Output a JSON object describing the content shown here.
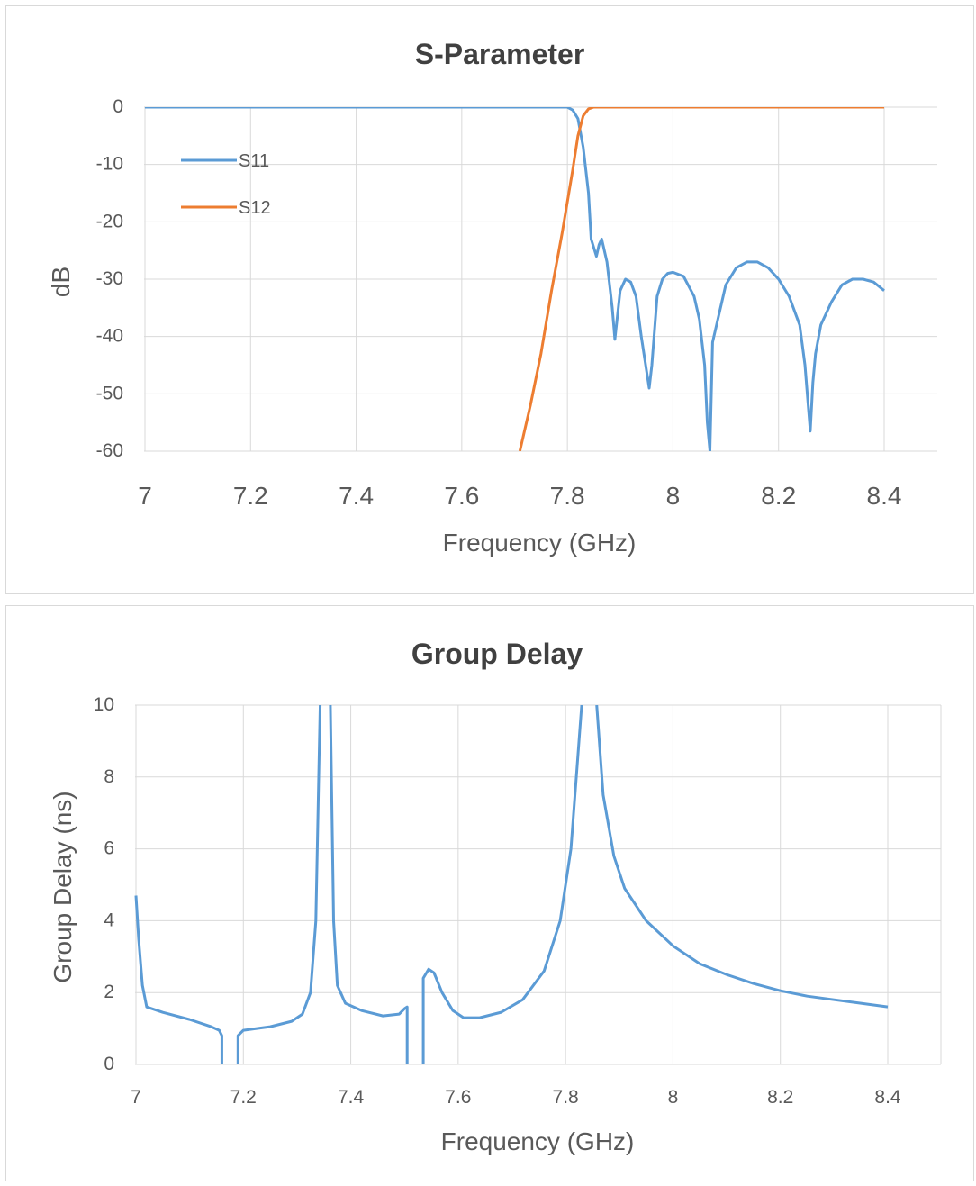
{
  "colors": {
    "s11": "#5b9bd5",
    "s12": "#ed7d31",
    "grid": "#d9d9d9",
    "text": "#595959",
    "title": "#404040"
  },
  "chart_data": [
    {
      "type": "line",
      "title": "S-Parameter",
      "xlabel": "Frequency (GHz)",
      "ylabel": "dB",
      "xlim": [
        7,
        8.4
      ],
      "ylim": [
        -60,
        0
      ],
      "grid": true,
      "legend_position": "top-left",
      "x_ticks": [
        "7",
        "7.2",
        "7.4",
        "7.6",
        "7.8",
        "8",
        "8.2",
        "8.4"
      ],
      "y_ticks": [
        "0",
        "-10",
        "-20",
        "-30",
        "-40",
        "-50",
        "-60"
      ],
      "series": [
        {
          "name": "S11",
          "color": "#5b9bd5",
          "points": [
            [
              7,
              0
            ],
            [
              7.5,
              0
            ],
            [
              7.8,
              0
            ],
            [
              7.81,
              -0.5
            ],
            [
              7.82,
              -2
            ],
            [
              7.83,
              -7
            ],
            [
              7.84,
              -15
            ],
            [
              7.845,
              -23
            ],
            [
              7.855,
              -26
            ],
            [
              7.86,
              -24
            ],
            [
              7.865,
              -23
            ],
            [
              7.875,
              -27
            ],
            [
              7.885,
              -35
            ],
            [
              7.89,
              -40.5
            ],
            [
              7.9,
              -32
            ],
            [
              7.91,
              -30
            ],
            [
              7.92,
              -30.5
            ],
            [
              7.93,
              -33
            ],
            [
              7.94,
              -40
            ],
            [
              7.955,
              -49
            ],
            [
              7.96,
              -45
            ],
            [
              7.97,
              -33
            ],
            [
              7.98,
              -30
            ],
            [
              7.99,
              -29
            ],
            [
              8.0,
              -28.8
            ],
            [
              8.02,
              -29.5
            ],
            [
              8.04,
              -33
            ],
            [
              8.05,
              -37
            ],
            [
              8.06,
              -45
            ],
            [
              8.065,
              -55
            ],
            [
              8.07,
              -60
            ],
            [
              8.075,
              -41
            ],
            [
              8.085,
              -37
            ],
            [
              8.1,
              -31
            ],
            [
              8.12,
              -28
            ],
            [
              8.14,
              -27
            ],
            [
              8.16,
              -27
            ],
            [
              8.18,
              -28
            ],
            [
              8.2,
              -30
            ],
            [
              8.22,
              -33
            ],
            [
              8.24,
              -38
            ],
            [
              8.25,
              -45
            ],
            [
              8.26,
              -56.5
            ],
            [
              8.265,
              -48
            ],
            [
              8.27,
              -43
            ],
            [
              8.28,
              -38
            ],
            [
              8.3,
              -34
            ],
            [
              8.32,
              -31
            ],
            [
              8.34,
              -30
            ],
            [
              8.36,
              -30
            ],
            [
              8.38,
              -30.5
            ],
            [
              8.4,
              -32
            ]
          ]
        },
        {
          "name": "S12",
          "color": "#ed7d31",
          "points": [
            [
              7.71,
              -60
            ],
            [
              7.73,
              -52
            ],
            [
              7.75,
              -43
            ],
            [
              7.77,
              -32
            ],
            [
              7.79,
              -22
            ],
            [
              7.81,
              -11
            ],
            [
              7.82,
              -5
            ],
            [
              7.83,
              -1.5
            ],
            [
              7.84,
              -0.3
            ],
            [
              7.85,
              0
            ],
            [
              8.0,
              0
            ],
            [
              8.4,
              0
            ]
          ]
        }
      ]
    },
    {
      "type": "line",
      "title": "Group Delay",
      "xlabel": "Frequency (GHz)",
      "ylabel": "Group Delay (ns)",
      "xlim": [
        7,
        8.4
      ],
      "ylim": [
        0,
        10
      ],
      "grid": true,
      "x_ticks": [
        "7",
        "7.2",
        "7.4",
        "7.6",
        "7.8",
        "8",
        "8.2",
        "8.4"
      ],
      "y_ticks": [
        "10",
        "8",
        "6",
        "4",
        "2",
        "0"
      ],
      "series": [
        {
          "color": "#5b9bd5",
          "segments": [
            [
              [
                7.0,
                4.7
              ],
              [
                7.005,
                3.5
              ],
              [
                7.012,
                2.2
              ],
              [
                7.02,
                1.6
              ],
              [
                7.05,
                1.45
              ],
              [
                7.1,
                1.25
              ],
              [
                7.14,
                1.05
              ],
              [
                7.155,
                0.95
              ],
              [
                7.16,
                0.8
              ],
              [
                7.16,
                0
              ]
            ],
            [
              [
                7.19,
                0
              ],
              [
                7.19,
                0.8
              ],
              [
                7.2,
                0.95
              ],
              [
                7.25,
                1.05
              ],
              [
                7.29,
                1.2
              ],
              [
                7.31,
                1.4
              ],
              [
                7.325,
                2.0
              ],
              [
                7.335,
                4.0
              ],
              [
                7.343,
                10
              ]
            ],
            [
              [
                7.362,
                10
              ],
              [
                7.368,
                4.0
              ],
              [
                7.375,
                2.2
              ],
              [
                7.39,
                1.7
              ],
              [
                7.42,
                1.5
              ],
              [
                7.46,
                1.35
              ],
              [
                7.49,
                1.4
              ],
              [
                7.5,
                1.55
              ],
              [
                7.505,
                1.6
              ],
              [
                7.505,
                0
              ]
            ],
            [
              [
                7.535,
                0
              ],
              [
                7.535,
                2.4
              ],
              [
                7.545,
                2.65
              ],
              [
                7.555,
                2.55
              ],
              [
                7.57,
                2.0
              ],
              [
                7.59,
                1.5
              ],
              [
                7.61,
                1.3
              ],
              [
                7.64,
                1.3
              ],
              [
                7.68,
                1.45
              ],
              [
                7.72,
                1.8
              ],
              [
                7.76,
                2.6
              ],
              [
                7.79,
                4.0
              ],
              [
                7.81,
                6.0
              ],
              [
                7.83,
                10
              ]
            ],
            [
              [
                7.858,
                10
              ],
              [
                7.87,
                7.5
              ],
              [
                7.89,
                5.8
              ],
              [
                7.91,
                4.9
              ],
              [
                7.95,
                4.0
              ],
              [
                8.0,
                3.3
              ],
              [
                8.05,
                2.8
              ],
              [
                8.1,
                2.5
              ],
              [
                8.15,
                2.25
              ],
              [
                8.2,
                2.05
              ],
              [
                8.25,
                1.9
              ],
              [
                8.3,
                1.8
              ],
              [
                8.35,
                1.7
              ],
              [
                8.4,
                1.6
              ]
            ]
          ]
        }
      ]
    }
  ]
}
